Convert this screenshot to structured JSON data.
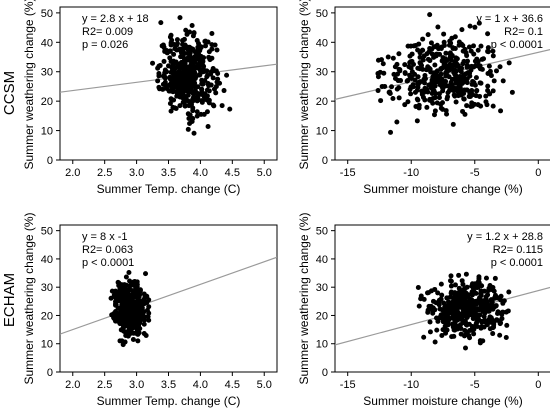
{
  "row_labels": [
    "CCSM",
    "ECHAM"
  ],
  "chart_data": [
    {
      "type": "scatter",
      "row": "CCSM",
      "xlabel": "Summer Temp. change (C)",
      "ylabel": "Summer weathering change (%)",
      "xlim": [
        1.8,
        5.2
      ],
      "ylim": [
        0,
        52
      ],
      "xticks": [
        "2.0",
        "2.5",
        "3.0",
        "3.5",
        "4.0",
        "4.5",
        "5.0"
      ],
      "yticks": [
        "0",
        "10",
        "20",
        "30",
        "40",
        "50"
      ],
      "annotations": [
        "y =  2.8 x + 18",
        "R2=  0.009",
        "p = 0.026"
      ],
      "annotation_position": "top-left",
      "fit": {
        "slope": 2.8,
        "intercept": 18
      },
      "cloud": {
        "x_min": 3.2,
        "x_max": 4.6,
        "x_center": 3.8,
        "x_spread": 0.22,
        "y_min": 9,
        "y_max": 50,
        "y_center": 29,
        "y_spread": 6.5,
        "n": 420
      },
      "points": []
    },
    {
      "type": "scatter",
      "row": "CCSM",
      "xlabel": "Summer moisture change (%)",
      "ylabel": "Summer weathering change (%)",
      "xlim": [
        -16,
        1
      ],
      "ylim": [
        0,
        52
      ],
      "xticks": [
        "-15",
        "-10",
        "-5",
        "0"
      ],
      "yticks": [
        "0",
        "10",
        "20",
        "30",
        "40",
        "50"
      ],
      "annotations": [
        "y =  1 x + 36.6",
        "R2=  0.1",
        "p < 0.0001"
      ],
      "annotation_position": "top-right",
      "fit": {
        "slope": 1,
        "intercept": 36.6
      },
      "cloud": {
        "x_min": -13,
        "x_max": -2,
        "x_center": -7.5,
        "x_spread": 2.3,
        "y_min": 9,
        "y_max": 50,
        "y_center": 29,
        "y_spread": 6.5,
        "n": 420
      },
      "points": []
    },
    {
      "type": "scatter",
      "row": "ECHAM",
      "xlabel": "Summer Temp. change (C)",
      "ylabel": "Summer weathering change (%)",
      "xlim": [
        1.8,
        5.2
      ],
      "ylim": [
        0,
        52
      ],
      "xticks": [
        "2.0",
        "2.5",
        "3.0",
        "3.5",
        "4.0",
        "4.5",
        "5.0"
      ],
      "yticks": [
        "0",
        "10",
        "20",
        "30",
        "40",
        "50"
      ],
      "annotations": [
        "y =  8 x  -1",
        "R2=  0.063",
        "p < 0.0001"
      ],
      "annotation_position": "top-left",
      "fit": {
        "slope": 8,
        "intercept": -1
      },
      "cloud": {
        "x_min": 2.6,
        "x_max": 3.35,
        "x_center": 2.9,
        "x_spread": 0.13,
        "y_min": 8,
        "y_max": 36,
        "y_center": 22,
        "y_spread": 5,
        "n": 380
      },
      "points": []
    },
    {
      "type": "scatter",
      "row": "ECHAM",
      "xlabel": "Summer moisture change (%)",
      "ylabel": "Summer weathering change (%)",
      "xlim": [
        -16,
        1
      ],
      "ylim": [
        0,
        52
      ],
      "xticks": [
        "-15",
        "-10",
        "-5",
        "0"
      ],
      "yticks": [
        "0",
        "10",
        "20",
        "30",
        "40",
        "50"
      ],
      "annotations": [
        "y =  1.2 x + 28.8",
        "R2=  0.115",
        "p < 0.0001"
      ],
      "annotation_position": "top-right",
      "fit": {
        "slope": 1.2,
        "intercept": 28.8
      },
      "cloud": {
        "x_min": -10,
        "x_max": -2.3,
        "x_center": -5.5,
        "x_spread": 1.6,
        "y_min": 8,
        "y_max": 36,
        "y_center": 22,
        "y_spread": 5,
        "n": 420
      },
      "points": []
    }
  ]
}
